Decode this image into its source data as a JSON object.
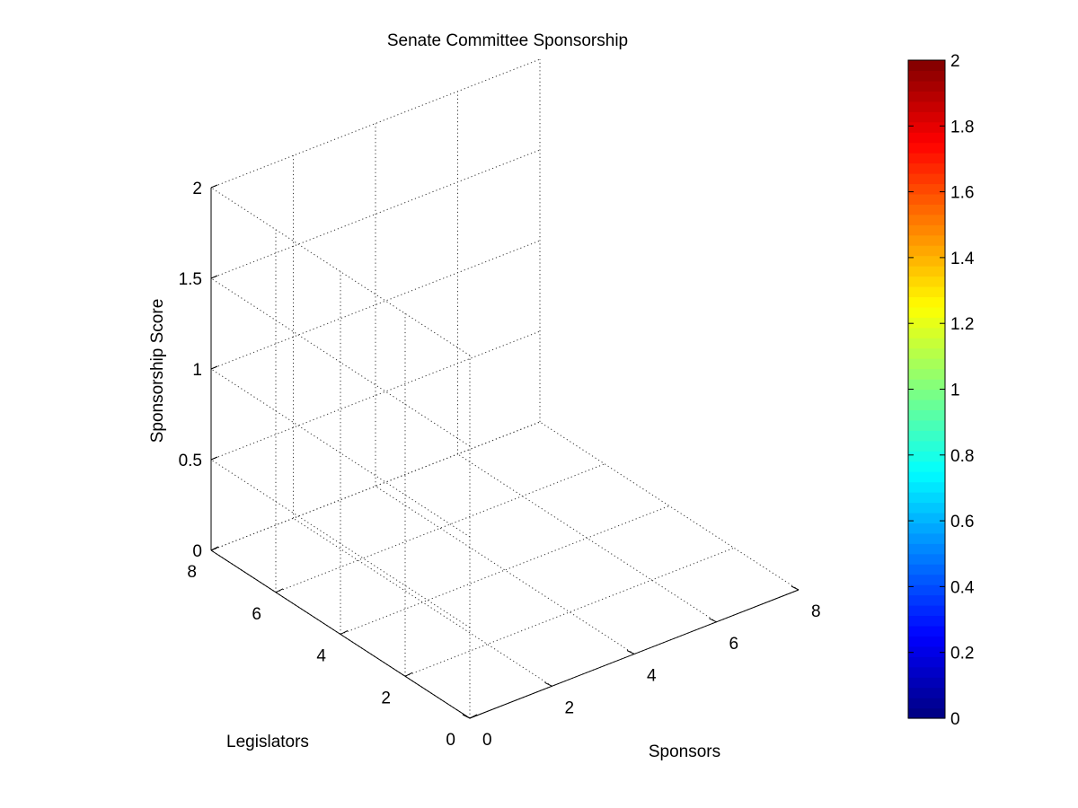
{
  "chart_data": {
    "type": "surface3d",
    "title": "Senate Committee Sponsorship",
    "xlabel": "Sponsors",
    "ylabel": "Legislators",
    "zlabel": "Sponsorship Score",
    "xlim": [
      0,
      8
    ],
    "ylim": [
      0,
      8
    ],
    "zlim": [
      0,
      2
    ],
    "xticks": [
      "0",
      "2",
      "4",
      "6",
      "8"
    ],
    "yticks": [
      "0",
      "2",
      "4",
      "6",
      "8"
    ],
    "zticks": [
      "0",
      "0.5",
      "1",
      "1.5",
      "2"
    ],
    "grid": true,
    "colorbar": {
      "colormap": "jet",
      "range": [
        0,
        2
      ],
      "ticks": [
        "0",
        "0.2",
        "0.4",
        "0.6",
        "0.8",
        "1",
        "1.2",
        "1.4",
        "1.6",
        "1.8",
        "2"
      ]
    },
    "series": []
  }
}
